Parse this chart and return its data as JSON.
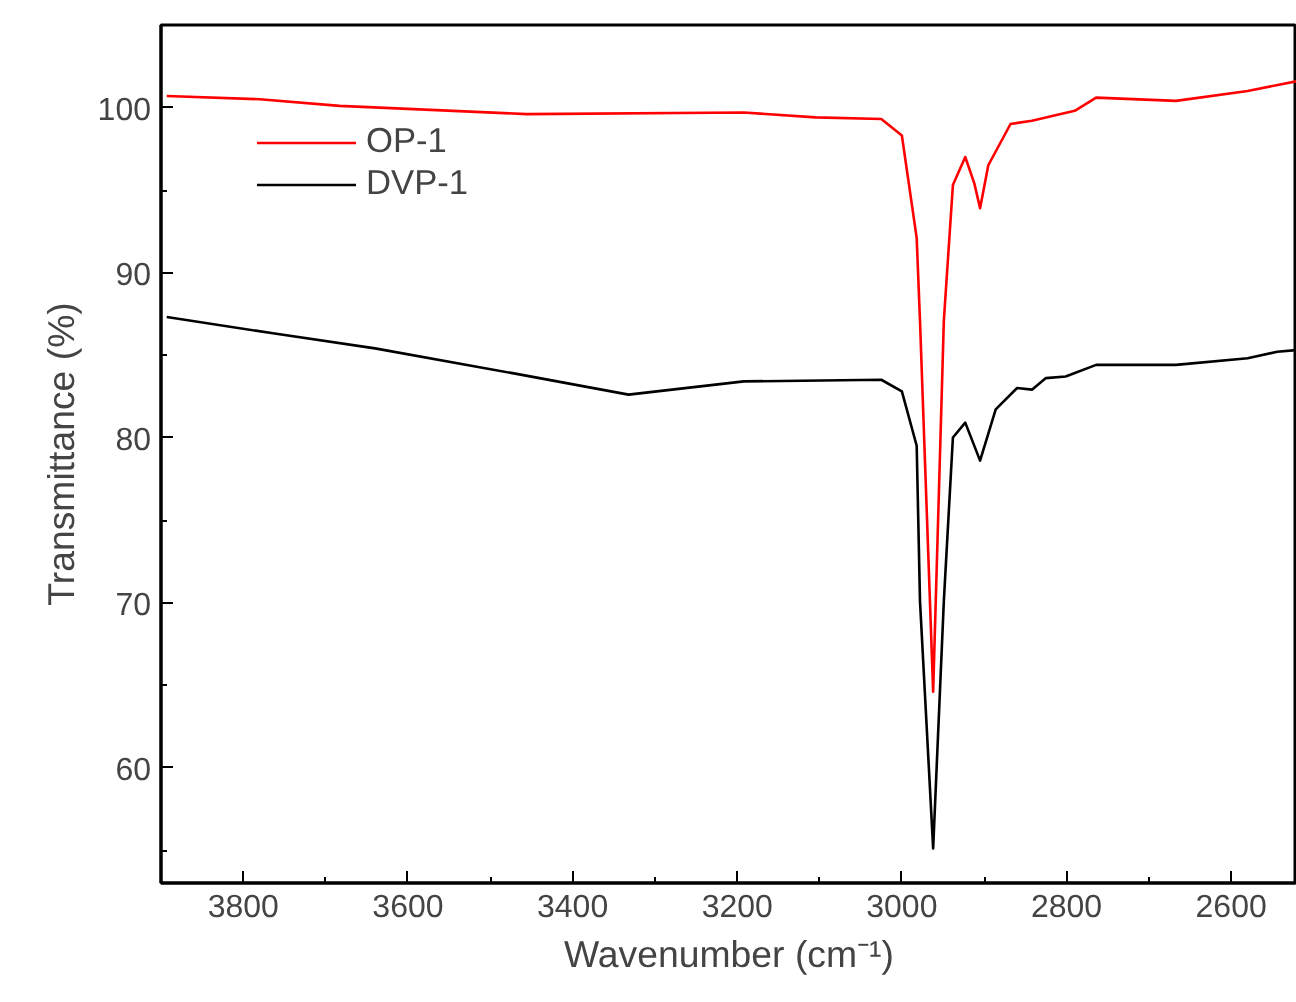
{
  "chart_data": {
    "type": "line",
    "xlabel": "Wavenumber (cm⁻¹)",
    "ylabel": "Transmittance (%)",
    "xlim": [
      3900,
      2520
    ],
    "ylim": [
      53,
      105
    ],
    "xticks": [
      3800,
      3600,
      3400,
      3200,
      3000,
      2800,
      2600
    ],
    "yticks": [
      60,
      70,
      80,
      90,
      100
    ],
    "grid": false,
    "legend": "top left",
    "marker": "none",
    "line_style": "solid",
    "series": [
      {
        "name": "OP-1",
        "color": "#ff0000",
        "x": [
          3893,
          3780,
          3683,
          3456,
          3192,
          3105,
          3025,
          3000,
          2982,
          2978,
          2962,
          2949,
          2938,
          2923,
          2912,
          2905,
          2895,
          2868,
          2842,
          2790,
          2764,
          2667,
          2580,
          2520
        ],
        "values": [
          100.7,
          100.5,
          100.1,
          99.6,
          99.7,
          99.4,
          99.3,
          98.3,
          92.1,
          87.1,
          64.6,
          87.1,
          95.3,
          97.0,
          95.4,
          93.9,
          96.5,
          99.0,
          99.2,
          99.8,
          100.6,
          100.4,
          101.0,
          101.6
        ]
      },
      {
        "name": "DVP-1",
        "color": "#000000",
        "x": [
          3893,
          3762,
          3640,
          3473,
          3332,
          3192,
          3025,
          3000,
          2982,
          2978,
          2962,
          2949,
          2938,
          2923,
          2905,
          2886,
          2860,
          2842,
          2825,
          2801,
          2764,
          2667,
          2580,
          2544,
          2520
        ],
        "values": [
          87.3,
          86.3,
          85.4,
          83.9,
          82.6,
          83.4,
          83.5,
          82.8,
          79.5,
          70.1,
          55.1,
          70.1,
          80.0,
          80.9,
          78.6,
          81.7,
          83.0,
          82.9,
          83.6,
          83.7,
          84.4,
          84.4,
          84.8,
          85.2,
          85.3
        ]
      }
    ]
  }
}
